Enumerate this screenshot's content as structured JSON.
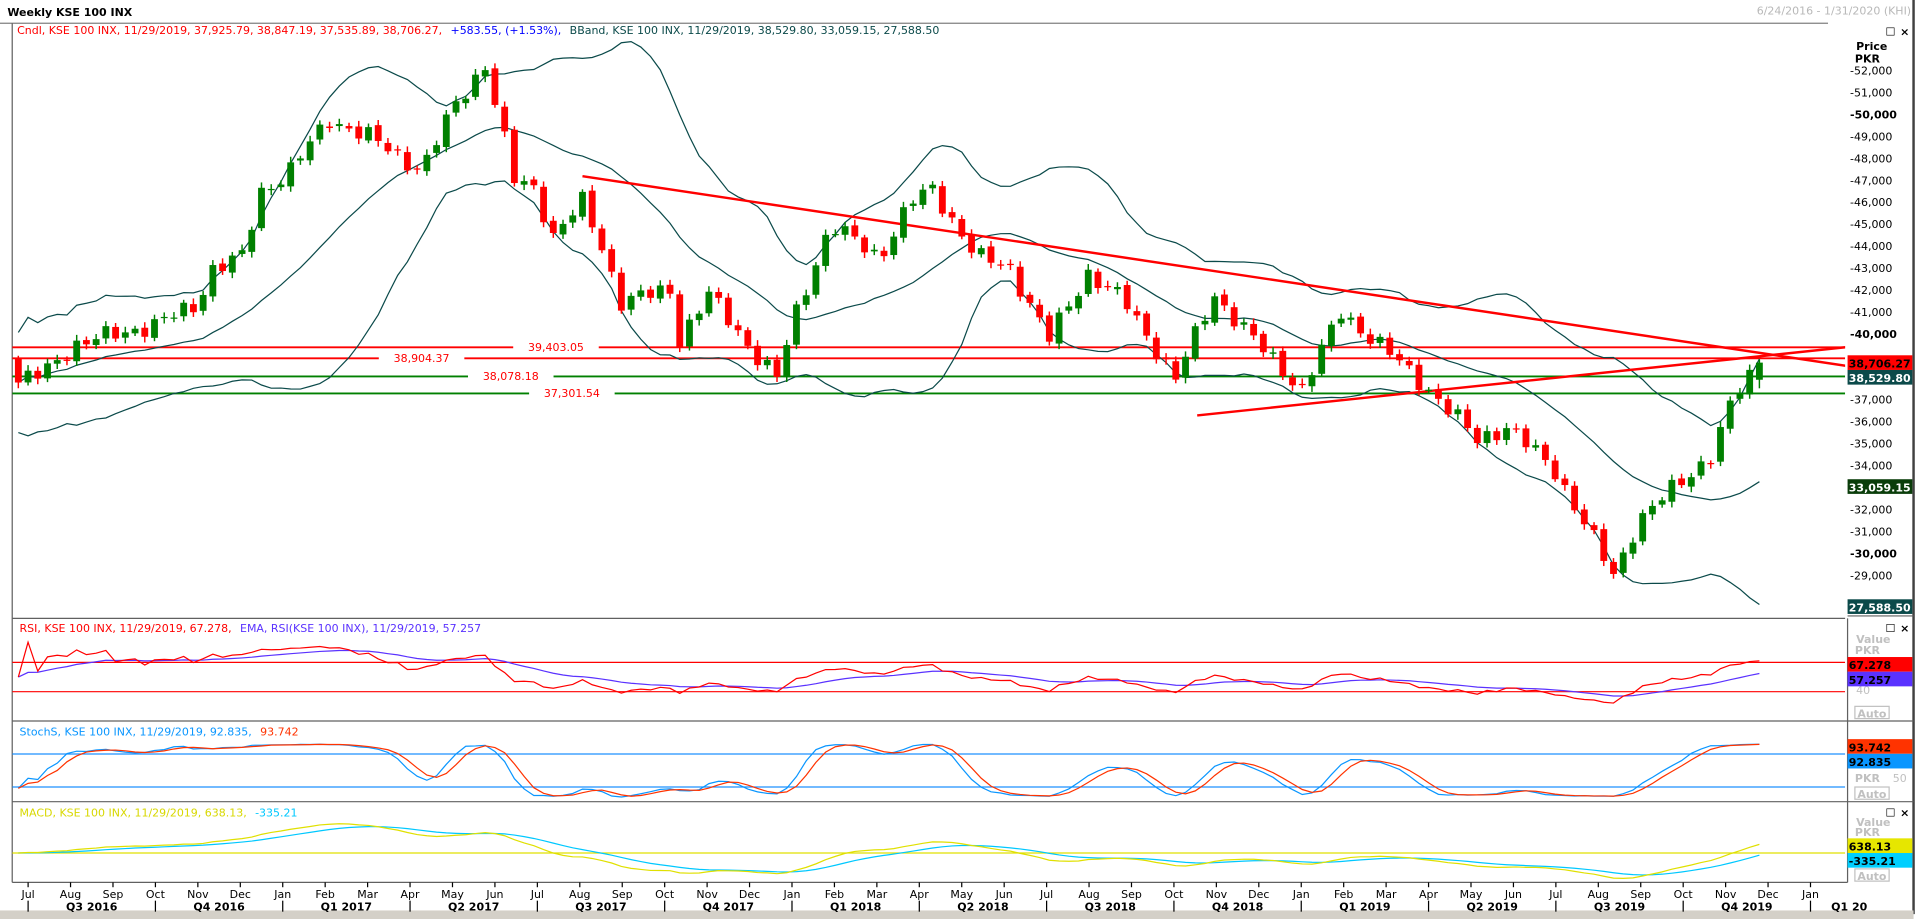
{
  "title": "Weekly KSE 100 INX",
  "date_range": "6/24/2016 - 1/31/2020 (KHI)",
  "legend": {
    "cndl": "Cndl, KSE 100 INX, 11/29/2019, 37,925.79, 38,847.19, 37,535.89, 38,706.27,",
    "change": "+583.55, (+1.53%),",
    "bband": "BBand, KSE 100 INX, 11/29/2019, 38,529.80, 33,059.15, 27,588.50"
  },
  "price_axis": {
    "title": "Price",
    "unit": "PKR"
  },
  "window_buttons": {
    "maximize": "☐",
    "close": "×"
  },
  "price_labels": [
    {
      "text": "38,706.27",
      "value": 38706.27,
      "bg": "#ff0000",
      "fg": "#000000"
    },
    {
      "text": "38,529.80",
      "value": 38529.8,
      "bg": "#0b4a4a",
      "fg": "#ffffff"
    },
    {
      "text": "33,059.15",
      "value": 33059.15,
      "bg": "#0a3d0a",
      "fg": "#ffffff"
    },
    {
      "text": "27,588.50",
      "value": 27588.5,
      "bg": "#0b4a4a",
      "fg": "#ffffff"
    }
  ],
  "levels": [
    {
      "text": "39,403.05",
      "value": 39403.05,
      "color": "#ff0000"
    },
    {
      "text": "38,904.37",
      "value": 38904.37,
      "color": "#ff0000"
    },
    {
      "text": "38,078.18",
      "value": 38078.18,
      "color": "#008000"
    },
    {
      "text": "37,301.54",
      "value": 37301.54,
      "color": "#008000"
    }
  ],
  "rsi_panel": {
    "legend_a": "RSI, KSE 100 INX, 11/29/2019, 67.278,",
    "legend_b": "EMA, RSI(KSE 100 INX), 11/29/2019, 57.257",
    "axis_title": "Value",
    "axis_unit": "PKR",
    "tick": "40",
    "auto": "Auto",
    "labels": [
      {
        "text": "67.278",
        "value": 67.278,
        "bg": "#ff0000"
      },
      {
        "text": "57.257",
        "value": 57.257,
        "bg": "#5a32ff"
      }
    ],
    "bands": [
      70,
      30
    ]
  },
  "stoch_panel": {
    "legend_a": "StochS, KSE 100 INX, 11/29/2019, 92.835,",
    "legend_b": "93.742",
    "axis_unit": "PKR",
    "tick": "50",
    "auto": "Auto",
    "labels": [
      {
        "text": "93.742",
        "value": 93.742,
        "bg": "#ff3300"
      },
      {
        "text": "92.835",
        "value": 92.835,
        "bg": "#0a96ff"
      }
    ],
    "bands": [
      80,
      20
    ]
  },
  "macd_panel": {
    "legend_a": "MACD, KSE 100 INX, 11/29/2019, 638.13,",
    "legend_b": "-335.21",
    "axis_title": "Value",
    "axis_unit": "PKR",
    "auto": "Auto",
    "labels": [
      {
        "text": "638.13",
        "value": 638.13,
        "bg": "#e6e600"
      },
      {
        "text": "-335.21",
        "value": -335.21,
        "bg": "#00cfff"
      }
    ]
  },
  "time_axis": {
    "months": [
      "Jul",
      "Aug",
      "Sep",
      "Oct",
      "Nov",
      "Dec",
      "Jan",
      "Feb",
      "Mar",
      "Apr",
      "May",
      "Jun",
      "Jul",
      "Aug",
      "Sep",
      "Oct",
      "Nov",
      "Dec",
      "Jan",
      "Feb",
      "Mar",
      "Apr",
      "May",
      "Jun",
      "Jul",
      "Aug",
      "Sep",
      "Oct",
      "Nov",
      "Dec",
      "Jan",
      "Feb",
      "Mar",
      "Apr",
      "May",
      "Jun",
      "Jul",
      "Aug",
      "Sep",
      "Oct",
      "Nov",
      "Dec",
      "Jan"
    ],
    "quarters": [
      "Q3 2016",
      "Q4 2016",
      "Q1 2017",
      "Q2 2017",
      "Q3 2017",
      "Q4 2017",
      "Q1 2018",
      "Q2 2018",
      "Q3 2018",
      "Q4 2018",
      "Q1 2019",
      "Q2 2019",
      "Q3 2019",
      "Q4 2019",
      "Q1 20"
    ]
  },
  "colors": {
    "up": "#008000",
    "down": "#ff0000",
    "bband": "#0b4a4a",
    "rsi": "#ff0000",
    "rsi_ema": "#5a32ff",
    "stoch_k": "#0a96ff",
    "stoch_d": "#ff3300",
    "macd": "#e0e000",
    "signal": "#00c8ff"
  },
  "chart_data": {
    "type": "candlestick",
    "title": "Weekly KSE 100 INX",
    "ylabel": "Price PKR",
    "ylim": [
      27500,
      52500
    ],
    "x_unit": "week index from 6/24/2016",
    "last_bar": {
      "date": "11/29/2019",
      "open": 37925.79,
      "high": 38847.19,
      "low": 37535.89,
      "close": 38706.27
    },
    "close_anchors": [
      [
        0,
        37800
      ],
      [
        2.5,
        38200
      ],
      [
        5.6,
        39500
      ],
      [
        10,
        40000
      ],
      [
        14.4,
        40500
      ],
      [
        18.2,
        41300
      ],
      [
        20,
        43000
      ],
      [
        23,
        43500
      ],
      [
        25,
        46500
      ],
      [
        28,
        47500
      ],
      [
        32,
        49800
      ],
      [
        36,
        49000
      ],
      [
        39.6,
        48000
      ],
      [
        41.5,
        47500
      ],
      [
        45,
        50500
      ],
      [
        48,
        52300
      ],
      [
        49.6,
        49500
      ],
      [
        51,
        47000
      ],
      [
        53,
        46700
      ],
      [
        55,
        44500
      ],
      [
        58,
        46000
      ],
      [
        60,
        44000
      ],
      [
        62,
        41500
      ],
      [
        67,
        42000
      ],
      [
        68,
        39800
      ],
      [
        71,
        41800
      ],
      [
        76,
        39000
      ],
      [
        78,
        38000
      ],
      [
        80,
        41000
      ],
      [
        83.5,
        45000
      ],
      [
        88.5,
        43500
      ],
      [
        91.7,
        46000
      ],
      [
        94,
        46600
      ],
      [
        98.6,
        43500
      ],
      [
        102,
        43000
      ],
      [
        106,
        39800
      ],
      [
        110,
        42800
      ],
      [
        113.7,
        41500
      ],
      [
        119,
        38000
      ],
      [
        123,
        41800
      ],
      [
        127.5,
        39500
      ],
      [
        132,
        37500
      ],
      [
        136,
        41000
      ],
      [
        140,
        39500
      ],
      [
        145,
        37500
      ],
      [
        150,
        35200
      ],
      [
        153,
        35800
      ],
      [
        158,
        33800
      ],
      [
        164,
        29000
      ],
      [
        166.5,
        31500
      ],
      [
        171.5,
        33500
      ],
      [
        174,
        34500
      ],
      [
        176.5,
        37200
      ],
      [
        179,
        38706.27
      ]
    ],
    "trendlines": [
      {
        "from": [
          58,
          47200
        ],
        "to": [
          188.8,
          38500
        ],
        "color": "#ff0000"
      },
      {
        "from": [
          121.2,
          36300
        ],
        "to": [
          188.8,
          39450
        ],
        "color": "#ff0000"
      }
    ],
    "price_ticks": [
      52000,
      51000,
      50000,
      49000,
      48000,
      47000,
      46000,
      45000,
      44000,
      43000,
      42000,
      41000,
      40000,
      39000,
      38000,
      37000,
      36000,
      35000,
      34000,
      33000,
      32000,
      31000,
      30000,
      29000,
      28000
    ],
    "indicators": [
      "BBand(20,2)",
      "RSI(14)",
      "EMA(RSI)",
      "StochS",
      "MACD"
    ]
  }
}
